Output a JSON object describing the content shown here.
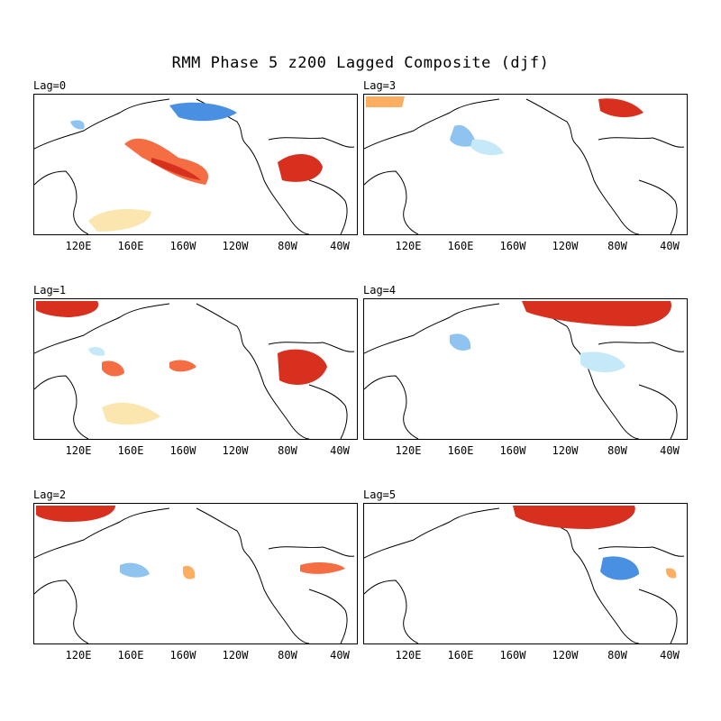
{
  "title": "RMM Phase 5 z200 Lagged Composite (djf)",
  "lon_ticks": [
    "120E",
    "160E",
    "160W",
    "120W",
    "80W",
    "40W"
  ],
  "colors": {
    "warm_dark": "#d7301f",
    "warm_mid": "#f46d43",
    "warm_light": "#fdae61",
    "cool_dark": "#4a90e2",
    "cool_mid": "#8fc4f0",
    "cool_light": "#c6e9f7",
    "tan": "#fbe6b0",
    "land_line": "#000000"
  },
  "panels": [
    {
      "label": "Lag=0"
    },
    {
      "label": "Lag=3"
    },
    {
      "label": "Lag=1"
    },
    {
      "label": "Lag=4"
    },
    {
      "label": "Lag=2"
    },
    {
      "label": "Lag=5"
    }
  ]
}
